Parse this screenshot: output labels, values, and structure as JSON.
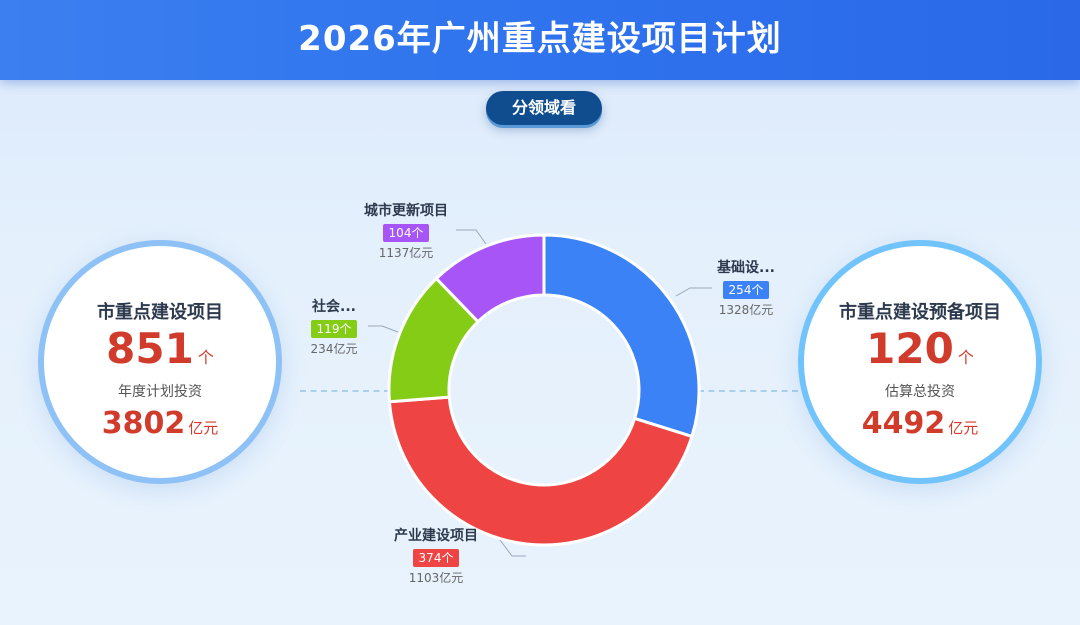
{
  "header": {
    "title": "2026年广州重点建设项目计划"
  },
  "tab": {
    "label": "分领域看"
  },
  "left_kpi": {
    "name": "市重点建设项目",
    "count": "851",
    "count_unit": "个",
    "sub_label": "年度计划投资",
    "money": "3802",
    "money_unit": "亿元"
  },
  "right_kpi": {
    "name": "市重点建设预备项目",
    "count": "120",
    "count_unit": "个",
    "sub_label": "估算总投资",
    "money": "4492",
    "money_unit": "亿元"
  },
  "chart_data": {
    "type": "pie",
    "donut": true,
    "title": "",
    "series": [
      {
        "name": "基础设...",
        "count": 254,
        "count_label": "254个",
        "investment": 1328,
        "investment_label": "1328亿元",
        "color": "#3b82f6"
      },
      {
        "name": "产业建设项目",
        "count": 374,
        "count_label": "374个",
        "investment": 1103,
        "investment_label": "1103亿元",
        "color": "#ef4444"
      },
      {
        "name": "社会...",
        "count": 119,
        "count_label": "119个",
        "investment": 234,
        "investment_label": "234亿元",
        "color": "#84cc16"
      },
      {
        "name": "城市更新项目",
        "count": 104,
        "count_label": "104个",
        "investment": 1137,
        "investment_label": "1137亿元",
        "color": "#a855f7"
      }
    ]
  }
}
